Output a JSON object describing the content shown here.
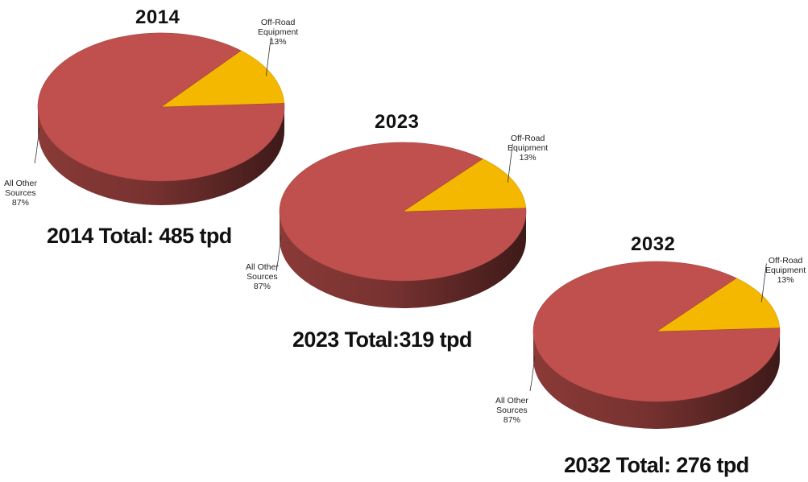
{
  "chart_data": [
    {
      "type": "pie",
      "title": "2014",
      "total_label": "2014 Total: 485 tpd",
      "slices": [
        {
          "name": "Off-Road Equipment",
          "value": 13,
          "label": "13%",
          "color": "#F5B800"
        },
        {
          "name": "All Other Sources",
          "value": 87,
          "label": "87%",
          "color": "#C0504D"
        }
      ]
    },
    {
      "type": "pie",
      "title": "2023",
      "total_label": "2023 Total:319 tpd",
      "slices": [
        {
          "name": "Off-Road Equipment",
          "value": 13,
          "label": "13%",
          "color": "#F5B800"
        },
        {
          "name": "All Other Sources",
          "value": 87,
          "label": "87%",
          "color": "#C0504D"
        }
      ]
    },
    {
      "type": "pie",
      "title": "2032",
      "total_label": "2032 Total: 276 tpd",
      "slices": [
        {
          "name": "Off-Road Equipment",
          "value": 13,
          "label": "13%",
          "color": "#F5B800"
        },
        {
          "name": "All Other Sources",
          "value": 87,
          "label": "87%",
          "color": "#C0504D"
        }
      ]
    }
  ],
  "labels": {
    "off_road_line1": "Off-Road",
    "off_road_line2": "Equipment",
    "all_other_line1": "All Other",
    "all_other_line2": "Sources"
  }
}
